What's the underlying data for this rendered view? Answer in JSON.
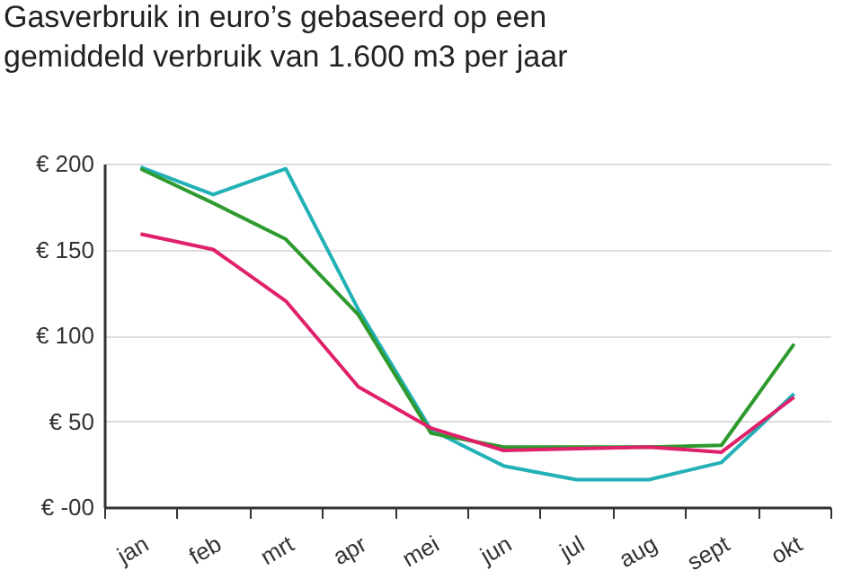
{
  "chart_data": {
    "type": "line",
    "title": "Gasverbruik in euro’s gebaseerd op een gemiddeld verbruik van 1.600 m3 per jaar",
    "categories": [
      "jan",
      "feb",
      "mrt",
      "apr",
      "mei",
      "jun",
      "jul",
      "aug",
      "sept",
      "okt"
    ],
    "series": [
      {
        "color": "#22b1b6",
        "values": [
          198,
          182,
          197,
          115,
          45,
          24,
          16,
          16,
          26,
          66
        ]
      },
      {
        "color": "#2e9a2e",
        "values": [
          197,
          177,
          156,
          112,
          43,
          35,
          35,
          35,
          36,
          95
        ]
      },
      {
        "color": "#e0206a",
        "values": [
          159,
          150,
          120,
          70,
          46,
          33,
          34,
          35,
          32,
          64
        ]
      }
    ],
    "ylim": [
      0,
      200
    ],
    "yticks": [
      {
        "value": 0,
        "label": "€ -00"
      },
      {
        "value": 50,
        "label": "€ 50"
      },
      {
        "value": 100,
        "label": "€ 100"
      },
      {
        "value": 150,
        "label": "€ 150"
      },
      {
        "value": 200,
        "label": "€ 200"
      }
    ],
    "grid": "y",
    "legend": false
  }
}
